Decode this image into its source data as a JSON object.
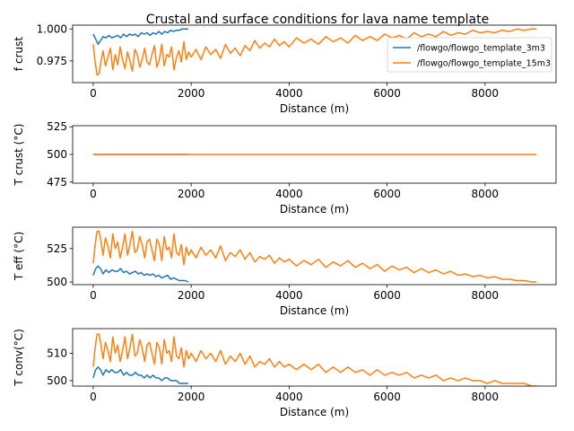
{
  "chart_data": {
    "type": "line",
    "title": "Crustal and surface conditions for lava name template",
    "legend": {
      "placement": "upper-right of first panel",
      "entries": [
        "/flowgo/flowgo_template_3m3",
        "/flowgo/flowgo_template_15m3"
      ]
    },
    "series_colors": {
      "/flowgo/flowgo_template_3m3": "#1f77b4",
      "/flowgo/flowgo_template_15m3": "#ff7f0e"
    },
    "panels": [
      {
        "id": "f_crust",
        "xlabel": "Distance (m)",
        "ylabel": "f crust",
        "xlim": [
          -420,
          9450
        ],
        "ylim": [
          0.958,
          1.003
        ],
        "xticks": [
          0,
          2000,
          4000,
          6000,
          8000
        ],
        "yticks": [
          0.975,
          1.0
        ],
        "ytick_labels": [
          "0.975",
          "1.000"
        ],
        "series": [
          {
            "name": "/flowgo/flowgo_template_3m3",
            "x": [
              0,
              50,
              100,
              150,
              200,
              260,
              320,
              380,
              440,
              500,
              560,
              620,
              680,
              740,
              800,
              860,
              920,
              980,
              1040,
              1100,
              1160,
              1220,
              1280,
              1340,
              1400,
              1460,
              1520,
              1580,
              1640,
              1700,
              1760,
              1820,
              1880,
              1940
            ],
            "y": [
              0.996,
              0.992,
              0.988,
              0.991,
              0.994,
              0.993,
              0.995,
              0.993,
              0.994,
              0.995,
              0.993,
              0.996,
              0.994,
              0.996,
              0.995,
              0.996,
              0.994,
              0.997,
              0.996,
              0.997,
              0.995,
              0.997,
              0.996,
              0.998,
              0.996,
              0.998,
              0.997,
              0.999,
              0.998,
              0.999,
              0.999,
              1.0,
              1.0,
              1.0
            ]
          },
          {
            "name": "/flowgo/flowgo_template_15m3",
            "x": [
              0,
              40,
              80,
              120,
              160,
              200,
              250,
              300,
              350,
              400,
              450,
              500,
              550,
              600,
              650,
              700,
              750,
              800,
              850,
              900,
              950,
              1000,
              1050,
              1100,
              1150,
              1200,
              1250,
              1300,
              1350,
              1400,
              1450,
              1500,
              1550,
              1600,
              1650,
              1700,
              1750,
              1800,
              1850,
              1900,
              1950,
              2000,
              2100,
              2200,
              2300,
              2400,
              2500,
              2600,
              2700,
              2800,
              2900,
              3000,
              3100,
              3200,
              3300,
              3400,
              3500,
              3600,
              3700,
              3800,
              3900,
              4000,
              4150,
              4300,
              4450,
              4600,
              4750,
              4900,
              5050,
              5200,
              5350,
              5500,
              5650,
              5800,
              5950,
              6100,
              6250,
              6400,
              6550,
              6700,
              6850,
              7000,
              7150,
              7300,
              7450,
              7600,
              7750,
              7900,
              8050,
              8200,
              8350,
              8500,
              8650,
              8800,
              8950,
              9050
            ],
            "y": [
              0.988,
              0.974,
              0.964,
              0.965,
              0.975,
              0.983,
              0.971,
              0.978,
              0.985,
              0.968,
              0.98,
              0.972,
              0.986,
              0.976,
              0.969,
              0.982,
              0.975,
              0.967,
              0.984,
              0.98,
              0.97,
              0.976,
              0.985,
              0.974,
              0.972,
              0.98,
              0.987,
              0.97,
              0.976,
              0.988,
              0.971,
              0.98,
              0.978,
              0.986,
              0.968,
              0.978,
              0.983,
              0.974,
              0.99,
              0.976,
              0.982,
              0.978,
              0.984,
              0.976,
              0.986,
              0.98,
              0.984,
              0.977,
              0.988,
              0.981,
              0.985,
              0.979,
              0.987,
              0.983,
              0.991,
              0.985,
              0.989,
              0.986,
              0.992,
              0.987,
              0.99,
              0.986,
              0.993,
              0.989,
              0.992,
              0.988,
              0.994,
              0.99,
              0.993,
              0.989,
              0.995,
              0.991,
              0.994,
              0.991,
              0.996,
              0.993,
              0.995,
              0.992,
              0.997,
              0.994,
              0.996,
              0.994,
              0.998,
              0.995,
              0.997,
              0.996,
              0.999,
              0.997,
              0.998,
              0.997,
              0.999,
              0.998,
              1.0,
              0.999,
              1.0,
              1.0
            ]
          }
        ]
      },
      {
        "id": "t_crust",
        "xlabel": "Distance (m)",
        "ylabel": "T crust (°C)",
        "xlim": [
          -420,
          9450
        ],
        "ylim": [
          474,
          526
        ],
        "xticks": [
          0,
          2000,
          4000,
          6000,
          8000
        ],
        "yticks": [
          475,
          500,
          525
        ],
        "ytick_labels": [
          "475",
          "500",
          "525"
        ],
        "series": [
          {
            "name": "/flowgo/flowgo_template_3m3",
            "x": [
              0,
              1950
            ],
            "y": [
              500,
              500
            ]
          },
          {
            "name": "/flowgo/flowgo_template_15m3",
            "x": [
              0,
              9050
            ],
            "y": [
              500,
              500
            ]
          }
        ]
      },
      {
        "id": "t_eff",
        "xlabel": "Distance (m)",
        "ylabel": "T eff (°C)",
        "xlim": [
          -420,
          9450
        ],
        "ylim": [
          498,
          541
        ],
        "xticks": [
          0,
          2000,
          4000,
          6000,
          8000
        ],
        "yticks": [
          500,
          525
        ],
        "ytick_labels": [
          "500",
          "525"
        ],
        "series": [
          {
            "name": "/flowgo/flowgo_template_3m3",
            "x": [
              0,
              50,
              100,
              150,
              200,
              260,
              320,
              380,
              440,
              500,
              560,
              620,
              680,
              740,
              800,
              860,
              920,
              980,
              1040,
              1100,
              1160,
              1220,
              1280,
              1340,
              1400,
              1460,
              1520,
              1580,
              1640,
              1700,
              1760,
              1820,
              1880,
              1940
            ],
            "y": [
              505,
              510,
              512,
              510,
              506,
              509,
              507,
              509,
              508,
              508,
              510,
              507,
              508,
              506,
              507,
              508,
              506,
              507,
              505,
              506,
              505,
              506,
              504,
              505,
              503,
              504,
              505,
              502,
              503,
              502,
              501,
              501,
              501,
              500
            ]
          },
          {
            "name": "/flowgo/flowgo_template_15m3",
            "x": [
              0,
              40,
              80,
              120,
              160,
              200,
              250,
              300,
              350,
              400,
              450,
              500,
              550,
              600,
              650,
              700,
              750,
              800,
              850,
              900,
              950,
              1000,
              1050,
              1100,
              1150,
              1200,
              1250,
              1300,
              1350,
              1400,
              1450,
              1500,
              1550,
              1600,
              1650,
              1700,
              1750,
              1800,
              1850,
              1900,
              1950,
              2000,
              2100,
              2200,
              2300,
              2400,
              2500,
              2600,
              2700,
              2800,
              2900,
              3000,
              3100,
              3200,
              3300,
              3400,
              3500,
              3600,
              3700,
              3800,
              3900,
              4000,
              4150,
              4300,
              4450,
              4600,
              4750,
              4900,
              5050,
              5200,
              5350,
              5500,
              5650,
              5800,
              5950,
              6100,
              6250,
              6400,
              6550,
              6700,
              6850,
              7000,
              7150,
              7300,
              7450,
              7600,
              7750,
              7900,
              8050,
              8200,
              8350,
              8500,
              8650,
              8800,
              8950,
              9050
            ],
            "y": [
              514,
              528,
              538,
              538,
              530,
              520,
              533,
              527,
              518,
              536,
              525,
              530,
              518,
              526,
              536,
              520,
              528,
              538,
              522,
              524,
              534,
              528,
              518,
              530,
              532,
              524,
              516,
              532,
              528,
              516,
              534,
              524,
              526,
              518,
              536,
              522,
              520,
              528,
              513,
              526,
              520,
              524,
              518,
              526,
              520,
              524,
              518,
              527,
              516,
              522,
              519,
              524,
              517,
              522,
              515,
              519,
              517,
              520,
              514,
              518,
              515,
              517,
              512,
              516,
              513,
              517,
              511,
              515,
              512,
              516,
              511,
              514,
              510,
              513,
              508,
              512,
              509,
              511,
              507,
              510,
              507,
              509,
              506,
              508,
              505,
              506,
              504,
              505,
              503,
              504,
              502,
              502,
              501,
              501,
              500,
              500
            ]
          }
        ]
      },
      {
        "id": "t_conv",
        "xlabel": "Distance (m)",
        "ylabel": "T conv(°C)",
        "xlim": [
          -420,
          9450
        ],
        "ylim": [
          498,
          519
        ],
        "xticks": [
          0,
          2000,
          4000,
          6000,
          8000
        ],
        "yticks": [
          500,
          510
        ],
        "ytick_labels": [
          "500",
          "510"
        ],
        "series": [
          {
            "name": "/flowgo/flowgo_template_3m3",
            "x": [
              0,
              50,
              100,
              150,
              200,
              260,
              320,
              380,
              440,
              500,
              560,
              620,
              680,
              740,
              800,
              860,
              920,
              980,
              1040,
              1100,
              1160,
              1220,
              1280,
              1340,
              1400,
              1460,
              1520,
              1580,
              1640,
              1700,
              1760,
              1820,
              1880,
              1940
            ],
            "y": [
              501,
              504,
              505,
              504,
              502,
              504,
              503,
              504,
              503,
              503,
              504,
              502,
              503,
              502,
              502,
              503,
              502,
              502,
              501,
              502,
              501,
              502,
              501,
              501,
              500,
              501,
              501,
              500,
              500,
              500,
              499,
              499,
              499,
              499
            ]
          },
          {
            "name": "/flowgo/flowgo_template_15m3",
            "x": [
              0,
              40,
              80,
              120,
              160,
              200,
              250,
              300,
              350,
              400,
              450,
              500,
              550,
              600,
              650,
              700,
              750,
              800,
              850,
              900,
              950,
              1000,
              1050,
              1100,
              1150,
              1200,
              1250,
              1300,
              1350,
              1400,
              1450,
              1500,
              1550,
              1600,
              1650,
              1700,
              1750,
              1800,
              1850,
              1900,
              1950,
              2000,
              2100,
              2200,
              2300,
              2400,
              2500,
              2600,
              2700,
              2800,
              2900,
              3000,
              3100,
              3200,
              3300,
              3400,
              3500,
              3600,
              3700,
              3800,
              3900,
              4000,
              4150,
              4300,
              4450,
              4600,
              4750,
              4900,
              5050,
              5200,
              5350,
              5500,
              5650,
              5800,
              5950,
              6100,
              6250,
              6400,
              6550,
              6700,
              6850,
              7000,
              7150,
              7300,
              7450,
              7600,
              7750,
              7900,
              8050,
              8200,
              8350,
              8500,
              8650,
              8800,
              8950,
              9050
            ],
            "y": [
              505,
              512,
              517,
              517,
              513,
              508,
              514,
              511,
              507,
              516,
              510,
              513,
              507,
              511,
              516,
              508,
              512,
              517,
              509,
              510,
              515,
              512,
              507,
              513,
              514,
              510,
              506,
              514,
              512,
              506,
              515,
              510,
              511,
              507,
              516,
              509,
              508,
              512,
              505,
              511,
              508,
              510,
              507,
              511,
              508,
              510,
              507,
              511,
              506,
              509,
              507,
              510,
              506,
              509,
              505,
              507,
              506,
              508,
              505,
              507,
              505,
              506,
              504,
              506,
              504,
              506,
              503,
              505,
              503,
              505,
              503,
              504,
              502,
              504,
              502,
              503,
              502,
              503,
              501,
              502,
              501,
              502,
              500,
              501,
              500,
              501,
              500,
              500,
              499,
              500,
              499,
              499,
              499,
              499,
              498,
              498
            ]
          }
        ]
      }
    ]
  }
}
